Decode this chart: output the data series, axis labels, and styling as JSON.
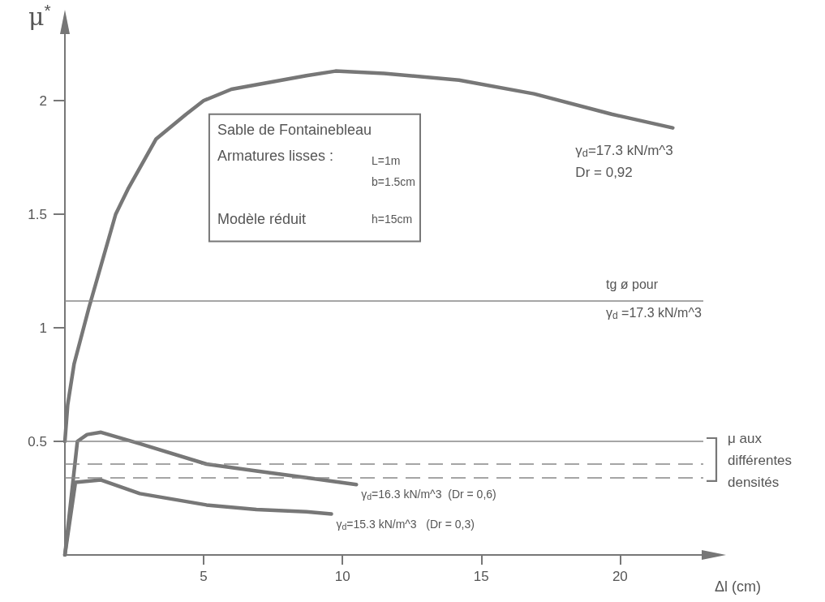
{
  "chart_data": {
    "type": "line",
    "xlabel": "Δl (cm)",
    "ylabel": "μ$^{*}$",
    "xlim": [
      0,
      23
    ],
    "ylim": [
      0,
      2.3
    ],
    "xticks": [
      5,
      10,
      15,
      20
    ],
    "yticks": [
      0.5,
      1,
      1.5,
      2
    ],
    "grid": false,
    "legend": false,
    "marker": "none",
    "line_style": "solid",
    "series": [
      {
        "name": "γ$_{d}$=17.3 kN/m^3\nDr = 0,92",
        "color": "#777777",
        "x": [
          0,
          0.1,
          0.33,
          0.87,
          1.83,
          2.27,
          3.28,
          4.37,
          5,
          6,
          8.7,
          9.75,
          11.5,
          14.2,
          16.9,
          19.7,
          21.9
        ],
        "values": [
          0.5,
          0.66,
          0.84,
          1.09,
          1.5,
          1.61,
          1.83,
          1.94,
          2.0,
          2.05,
          2.11,
          2.13,
          2.12,
          2.09,
          2.03,
          1.94,
          1.88
        ]
      },
      {
        "name": "γ$_{d}$=16.3 kN/m^3  (Dr = 0,6)",
        "color": "#777777",
        "x": [
          0,
          0.45,
          0.8,
          1.3,
          2.7,
          5.1,
          6.9,
          8.7,
          10.5
        ],
        "values": [
          0,
          0.5,
          0.53,
          0.54,
          0.49,
          0.4,
          0.37,
          0.34,
          0.31
        ]
      },
      {
        "name": "γ$_{d}$=15.3 kN/m^3   (Dr = 0,3)",
        "color": "#777777",
        "x": [
          0,
          0.38,
          1.3,
          2.7,
          5.1,
          6.9,
          8.7,
          9.6
        ],
        "values": [
          0,
          0.32,
          0.33,
          0.27,
          0.22,
          0.2,
          0.19,
          0.18
        ]
      }
    ],
    "ref_lines": [
      {
        "axis": "y",
        "value": 1.12,
        "color": "#888888",
        "line_style": "solid"
      },
      {
        "axis": "y",
        "value": 0.5,
        "color": "#888888",
        "line_style": "solid"
      },
      {
        "axis": "y",
        "value": 0.4,
        "color": "#888888",
        "line_style": "dashed"
      },
      {
        "axis": "y",
        "value": 0.34,
        "color": "#888888",
        "line_style": "dashed"
      }
    ],
    "annotations": [
      "Sable de Fontainebleau",
      "Armatures lisses :",
      "L=1m",
      "b=1.5cm",
      "Modèle réduit",
      "h=15cm",
      "μ aux\ndifférentes\ndensités",
      "tg ø pour\nγ$_{d}$ =17.3 kN/m^3"
    ]
  }
}
